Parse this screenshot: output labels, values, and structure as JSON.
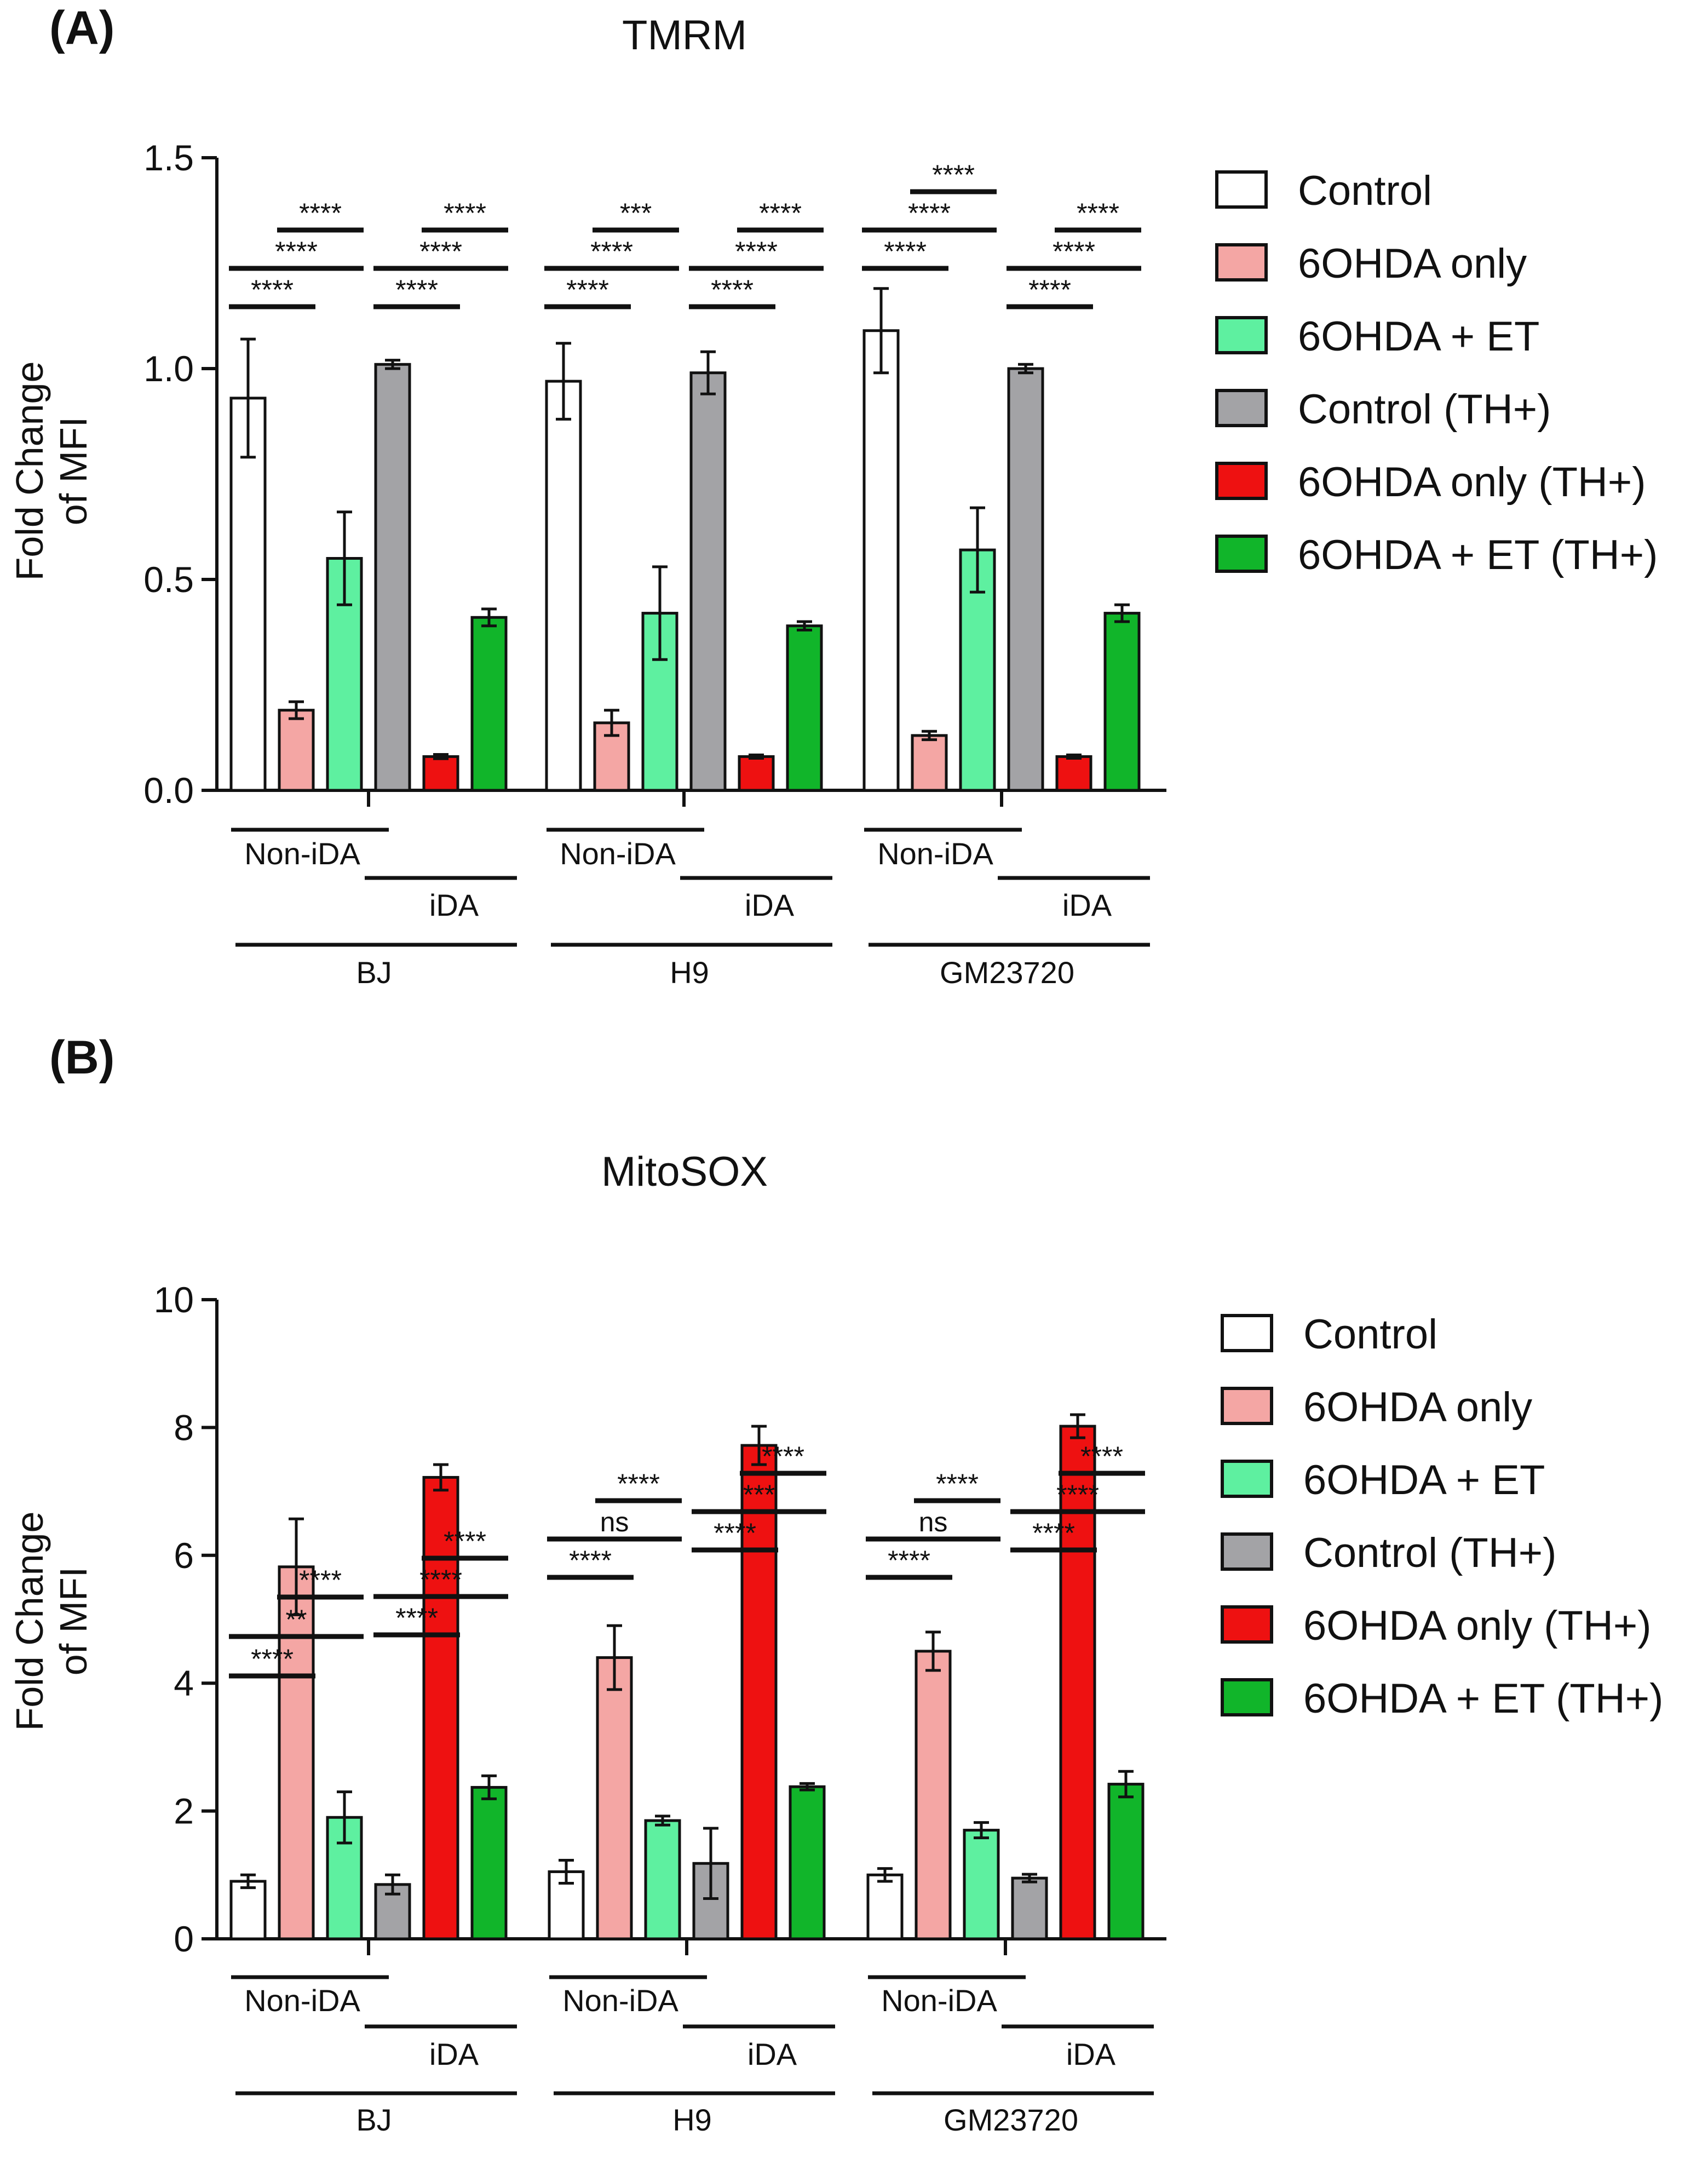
{
  "chart_data": [
    {
      "type": "bar",
      "panel_label": "(A)",
      "title": "TMRM",
      "ylabel_lines": [
        "Fold Change",
        "of MFI"
      ],
      "ylim": [
        0,
        1.5
      ],
      "yticks": [
        "0.0",
        "0.5",
        "1.0",
        "1.5"
      ],
      "categories": [
        "BJ",
        "H9",
        "GM23720"
      ],
      "subgroups": [
        "Non-iDA",
        "iDA"
      ],
      "legend_position": "right",
      "series": [
        {
          "name": "Control",
          "color": "#ffffff",
          "values": [
            0.93,
            0.97,
            1.09
          ],
          "errors": [
            0.14,
            0.09,
            0.1
          ]
        },
        {
          "name": "6OHDA only",
          "color": "#f4a6a4",
          "values": [
            0.19,
            0.16,
            0.13
          ],
          "errors": [
            0.02,
            0.03,
            0.01
          ]
        },
        {
          "name": "6OHDA + ET",
          "color": "#5ef0a0",
          "values": [
            0.55,
            0.42,
            0.57
          ],
          "errors": [
            0.11,
            0.11,
            0.1
          ]
        },
        {
          "name": "Control (TH+)",
          "color": "#a3a3a6",
          "values": [
            1.01,
            0.99,
            1.0
          ],
          "errors": [
            0.01,
            0.05,
            0.01
          ]
        },
        {
          "name": "6OHDA only (TH+)",
          "color": "#ee1111",
          "values": [
            0.08,
            0.08,
            0.08
          ],
          "errors": [
            0.005,
            0.004,
            0.004
          ]
        },
        {
          "name": "6OHDA + ET (TH+)",
          "color": "#11b52a",
          "values": [
            0.41,
            0.39,
            0.42
          ],
          "errors": [
            0.02,
            0.01,
            0.02
          ]
        }
      ],
      "significance": [
        {
          "group": 0,
          "from": 0,
          "to": 1,
          "level": 0,
          "label": "****"
        },
        {
          "group": 0,
          "from": 0,
          "to": 2,
          "level": 1,
          "label": "****"
        },
        {
          "group": 0,
          "from": 1,
          "to": 2,
          "level": 2,
          "label": "****"
        },
        {
          "group": 0,
          "from": 3,
          "to": 4,
          "level": 0,
          "label": "****"
        },
        {
          "group": 0,
          "from": 3,
          "to": 5,
          "level": 1,
          "label": "****"
        },
        {
          "group": 0,
          "from": 4,
          "to": 5,
          "level": 2,
          "label": "****"
        },
        {
          "group": 1,
          "from": 0,
          "to": 1,
          "level": 0,
          "label": "****"
        },
        {
          "group": 1,
          "from": 0,
          "to": 2,
          "level": 1,
          "label": "****"
        },
        {
          "group": 1,
          "from": 1,
          "to": 2,
          "level": 2,
          "label": "***"
        },
        {
          "group": 1,
          "from": 3,
          "to": 4,
          "level": 0,
          "label": "****"
        },
        {
          "group": 1,
          "from": 3,
          "to": 5,
          "level": 1,
          "label": "****"
        },
        {
          "group": 1,
          "from": 4,
          "to": 5,
          "level": 2,
          "label": "****"
        },
        {
          "group": 2,
          "from": 0,
          "to": 1,
          "level": 1,
          "label": "****"
        },
        {
          "group": 2,
          "from": 0,
          "to": 2,
          "level": 2,
          "label": "****"
        },
        {
          "group": 2,
          "from": 1,
          "to": 2,
          "level": 3,
          "label": "****"
        },
        {
          "group": 2,
          "from": 3,
          "to": 4,
          "level": 0,
          "label": "****"
        },
        {
          "group": 2,
          "from": 3,
          "to": 5,
          "level": 1,
          "label": "****"
        },
        {
          "group": 2,
          "from": 4,
          "to": 5,
          "level": 2,
          "label": "****"
        }
      ]
    },
    {
      "type": "bar",
      "panel_label": "(B)",
      "title": "MitoSOX",
      "ylabel_lines": [
        "Fold Change",
        "of MFI"
      ],
      "ylim": [
        0,
        10
      ],
      "yticks": [
        "0",
        "2",
        "4",
        "6",
        "8",
        "10"
      ],
      "categories": [
        "BJ",
        "H9",
        "GM23720"
      ],
      "subgroups": [
        "Non-iDA",
        "iDA"
      ],
      "legend_position": "right",
      "series": [
        {
          "name": "Control",
          "color": "#ffffff",
          "values": [
            0.9,
            1.05,
            1.0
          ],
          "errors": [
            0.1,
            0.18,
            0.1
          ]
        },
        {
          "name": "6OHDA only",
          "color": "#f4a6a4",
          "values": [
            5.82,
            4.4,
            4.5
          ],
          "errors": [
            0.75,
            0.5,
            0.3
          ]
        },
        {
          "name": "6OHDA + ET",
          "color": "#5ef0a0",
          "values": [
            1.9,
            1.85,
            1.7
          ],
          "errors": [
            0.4,
            0.07,
            0.12
          ]
        },
        {
          "name": "Control (TH+)",
          "color": "#a3a3a6",
          "values": [
            0.85,
            1.18,
            0.95
          ],
          "errors": [
            0.15,
            0.55,
            0.06
          ]
        },
        {
          "name": "6OHDA only (TH+)",
          "color": "#ee1111",
          "values": [
            7.22,
            7.72,
            8.02
          ],
          "errors": [
            0.2,
            0.3,
            0.18
          ]
        },
        {
          "name": "6OHDA + ET (TH+)",
          "color": "#11b52a",
          "values": [
            2.37,
            2.38,
            2.42
          ],
          "errors": [
            0.18,
            0.05,
            0.2
          ]
        }
      ],
      "significance": [
        {
          "group": 0,
          "from": 0,
          "to": 1,
          "level": 0,
          "label": "****"
        },
        {
          "group": 0,
          "from": 0,
          "to": 2,
          "level": 1,
          "label": "**"
        },
        {
          "group": 0,
          "from": 1,
          "to": 2,
          "level": 2,
          "label": "****"
        },
        {
          "group": 0,
          "from": 3,
          "to": 4,
          "level": 1,
          "label": "****"
        },
        {
          "group": 0,
          "from": 3,
          "to": 5,
          "level": 2,
          "label": "****"
        },
        {
          "group": 0,
          "from": 4,
          "to": 5,
          "level": 3,
          "label": "****"
        },
        {
          "group": 1,
          "from": 0,
          "to": 1,
          "level": 0,
          "label": "****"
        },
        {
          "group": 1,
          "from": 0,
          "to": 2,
          "level": 1,
          "label": "ns"
        },
        {
          "group": 1,
          "from": 1,
          "to": 2,
          "level": 2,
          "label": "****"
        },
        {
          "group": 1,
          "from": 3,
          "to": 4,
          "level": 0,
          "label": "****"
        },
        {
          "group": 1,
          "from": 3,
          "to": 5,
          "level": 1,
          "label": "***"
        },
        {
          "group": 1,
          "from": 4,
          "to": 5,
          "level": 2,
          "label": "****"
        },
        {
          "group": 2,
          "from": 0,
          "to": 1,
          "level": 0,
          "label": "****"
        },
        {
          "group": 2,
          "from": 0,
          "to": 2,
          "level": 1,
          "label": "ns"
        },
        {
          "group": 2,
          "from": 1,
          "to": 2,
          "level": 2,
          "label": "****"
        },
        {
          "group": 2,
          "from": 3,
          "to": 4,
          "level": 0,
          "label": "****"
        },
        {
          "group": 2,
          "from": 3,
          "to": 5,
          "level": 1,
          "label": "****"
        },
        {
          "group": 2,
          "from": 4,
          "to": 5,
          "level": 2,
          "label": "****"
        }
      ]
    }
  ]
}
